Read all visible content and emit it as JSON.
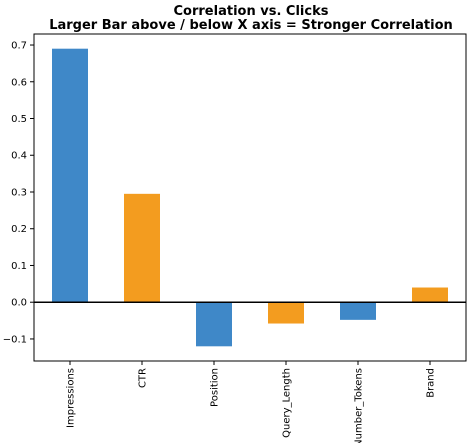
{
  "chart_data": {
    "type": "bar",
    "title": "Correlation vs. Clicks",
    "subtitle": "Larger Bar above / below X axis = Stronger Correlation",
    "xlabel": "",
    "ylabel": "",
    "categories": [
      "Impressions",
      "CTR",
      "Position",
      "Query_Length",
      "Number_Tokens",
      "Brand"
    ],
    "values": [
      0.69,
      0.295,
      -0.12,
      -0.058,
      -0.048,
      0.04
    ],
    "bar_colors": [
      "#3f88c8",
      "#f39c1f",
      "#3f88c8",
      "#f39c1f",
      "#3f88c8",
      "#f39c1f"
    ],
    "ylim": [
      -0.16,
      0.73
    ],
    "yticks": [
      -0.1,
      0.0,
      0.1,
      0.2,
      0.3,
      0.4,
      0.5,
      0.6,
      0.7
    ],
    "ytick_labels": [
      "−0.1",
      "0.0",
      "0.1",
      "0.2",
      "0.3",
      "0.4",
      "0.5",
      "0.6",
      "0.7"
    ],
    "grid": false,
    "zero_line": true
  }
}
